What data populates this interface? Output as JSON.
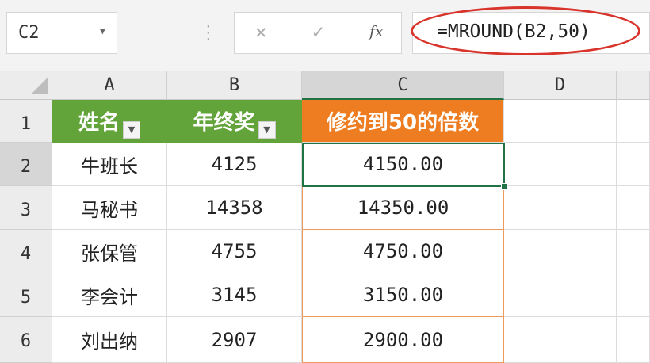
{
  "name_box": {
    "value": "C2"
  },
  "formula_bar": {
    "cancel": "✕",
    "confirm": "✓",
    "fx": "fx",
    "formula": "=MROUND(B2,50)"
  },
  "columns": [
    "A",
    "B",
    "C",
    "D"
  ],
  "rows": [
    "1",
    "2",
    "3",
    "4",
    "5",
    "6"
  ],
  "header": {
    "name": "姓名",
    "bonus": "年终奖",
    "rounded": "修约到50的倍数"
  },
  "data": [
    {
      "name": "牛班长",
      "bonus": "4125",
      "rounded": "4150.00"
    },
    {
      "name": "马秘书",
      "bonus": "14358",
      "rounded": "14350.00"
    },
    {
      "name": "张保管",
      "bonus": "4755",
      "rounded": "4750.00"
    },
    {
      "name": "李会计",
      "bonus": "3145",
      "rounded": "3150.00"
    },
    {
      "name": "刘出纳",
      "bonus": "2907",
      "rounded": "2900.00"
    }
  ],
  "colors": {
    "header_green": "#62a43a",
    "header_orange": "#ee7d22",
    "selection": "#217346",
    "highlight_oval": "#d9342b"
  }
}
